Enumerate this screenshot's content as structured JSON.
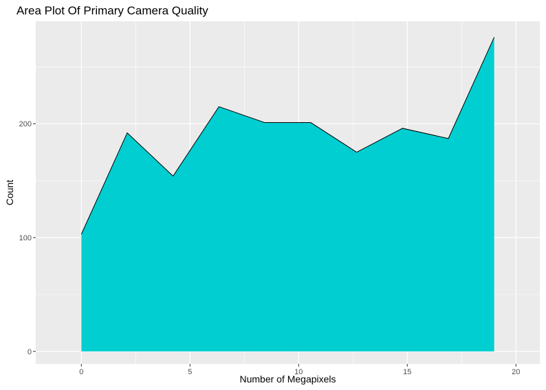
{
  "chart_data": {
    "type": "area",
    "title": "Area Plot Of Primary Camera Quality",
    "xlabel": "Number of Megapixels",
    "ylabel": "Count",
    "x": [
      0,
      2.11,
      4.22,
      6.33,
      8.44,
      10.56,
      12.67,
      14.78,
      16.89,
      19
    ],
    "values": [
      103,
      192,
      154,
      215,
      201,
      201,
      175,
      196,
      187,
      276
    ],
    "xlim": [
      -2.1,
      21.1
    ],
    "ylim": [
      -11,
      290
    ],
    "x_ticks": [
      0,
      5,
      10,
      15,
      20
    ],
    "y_ticks": [
      0,
      100,
      200
    ],
    "x_tick_labels": [
      "0",
      "5",
      "10",
      "15",
      "20"
    ],
    "y_tick_labels": [
      "0",
      "100",
      "200"
    ],
    "grid": true,
    "colors": {
      "fill": "#00CED1",
      "outline": "#000000",
      "panel": "#EBEBEB",
      "grid": "#FFFFFF"
    }
  }
}
